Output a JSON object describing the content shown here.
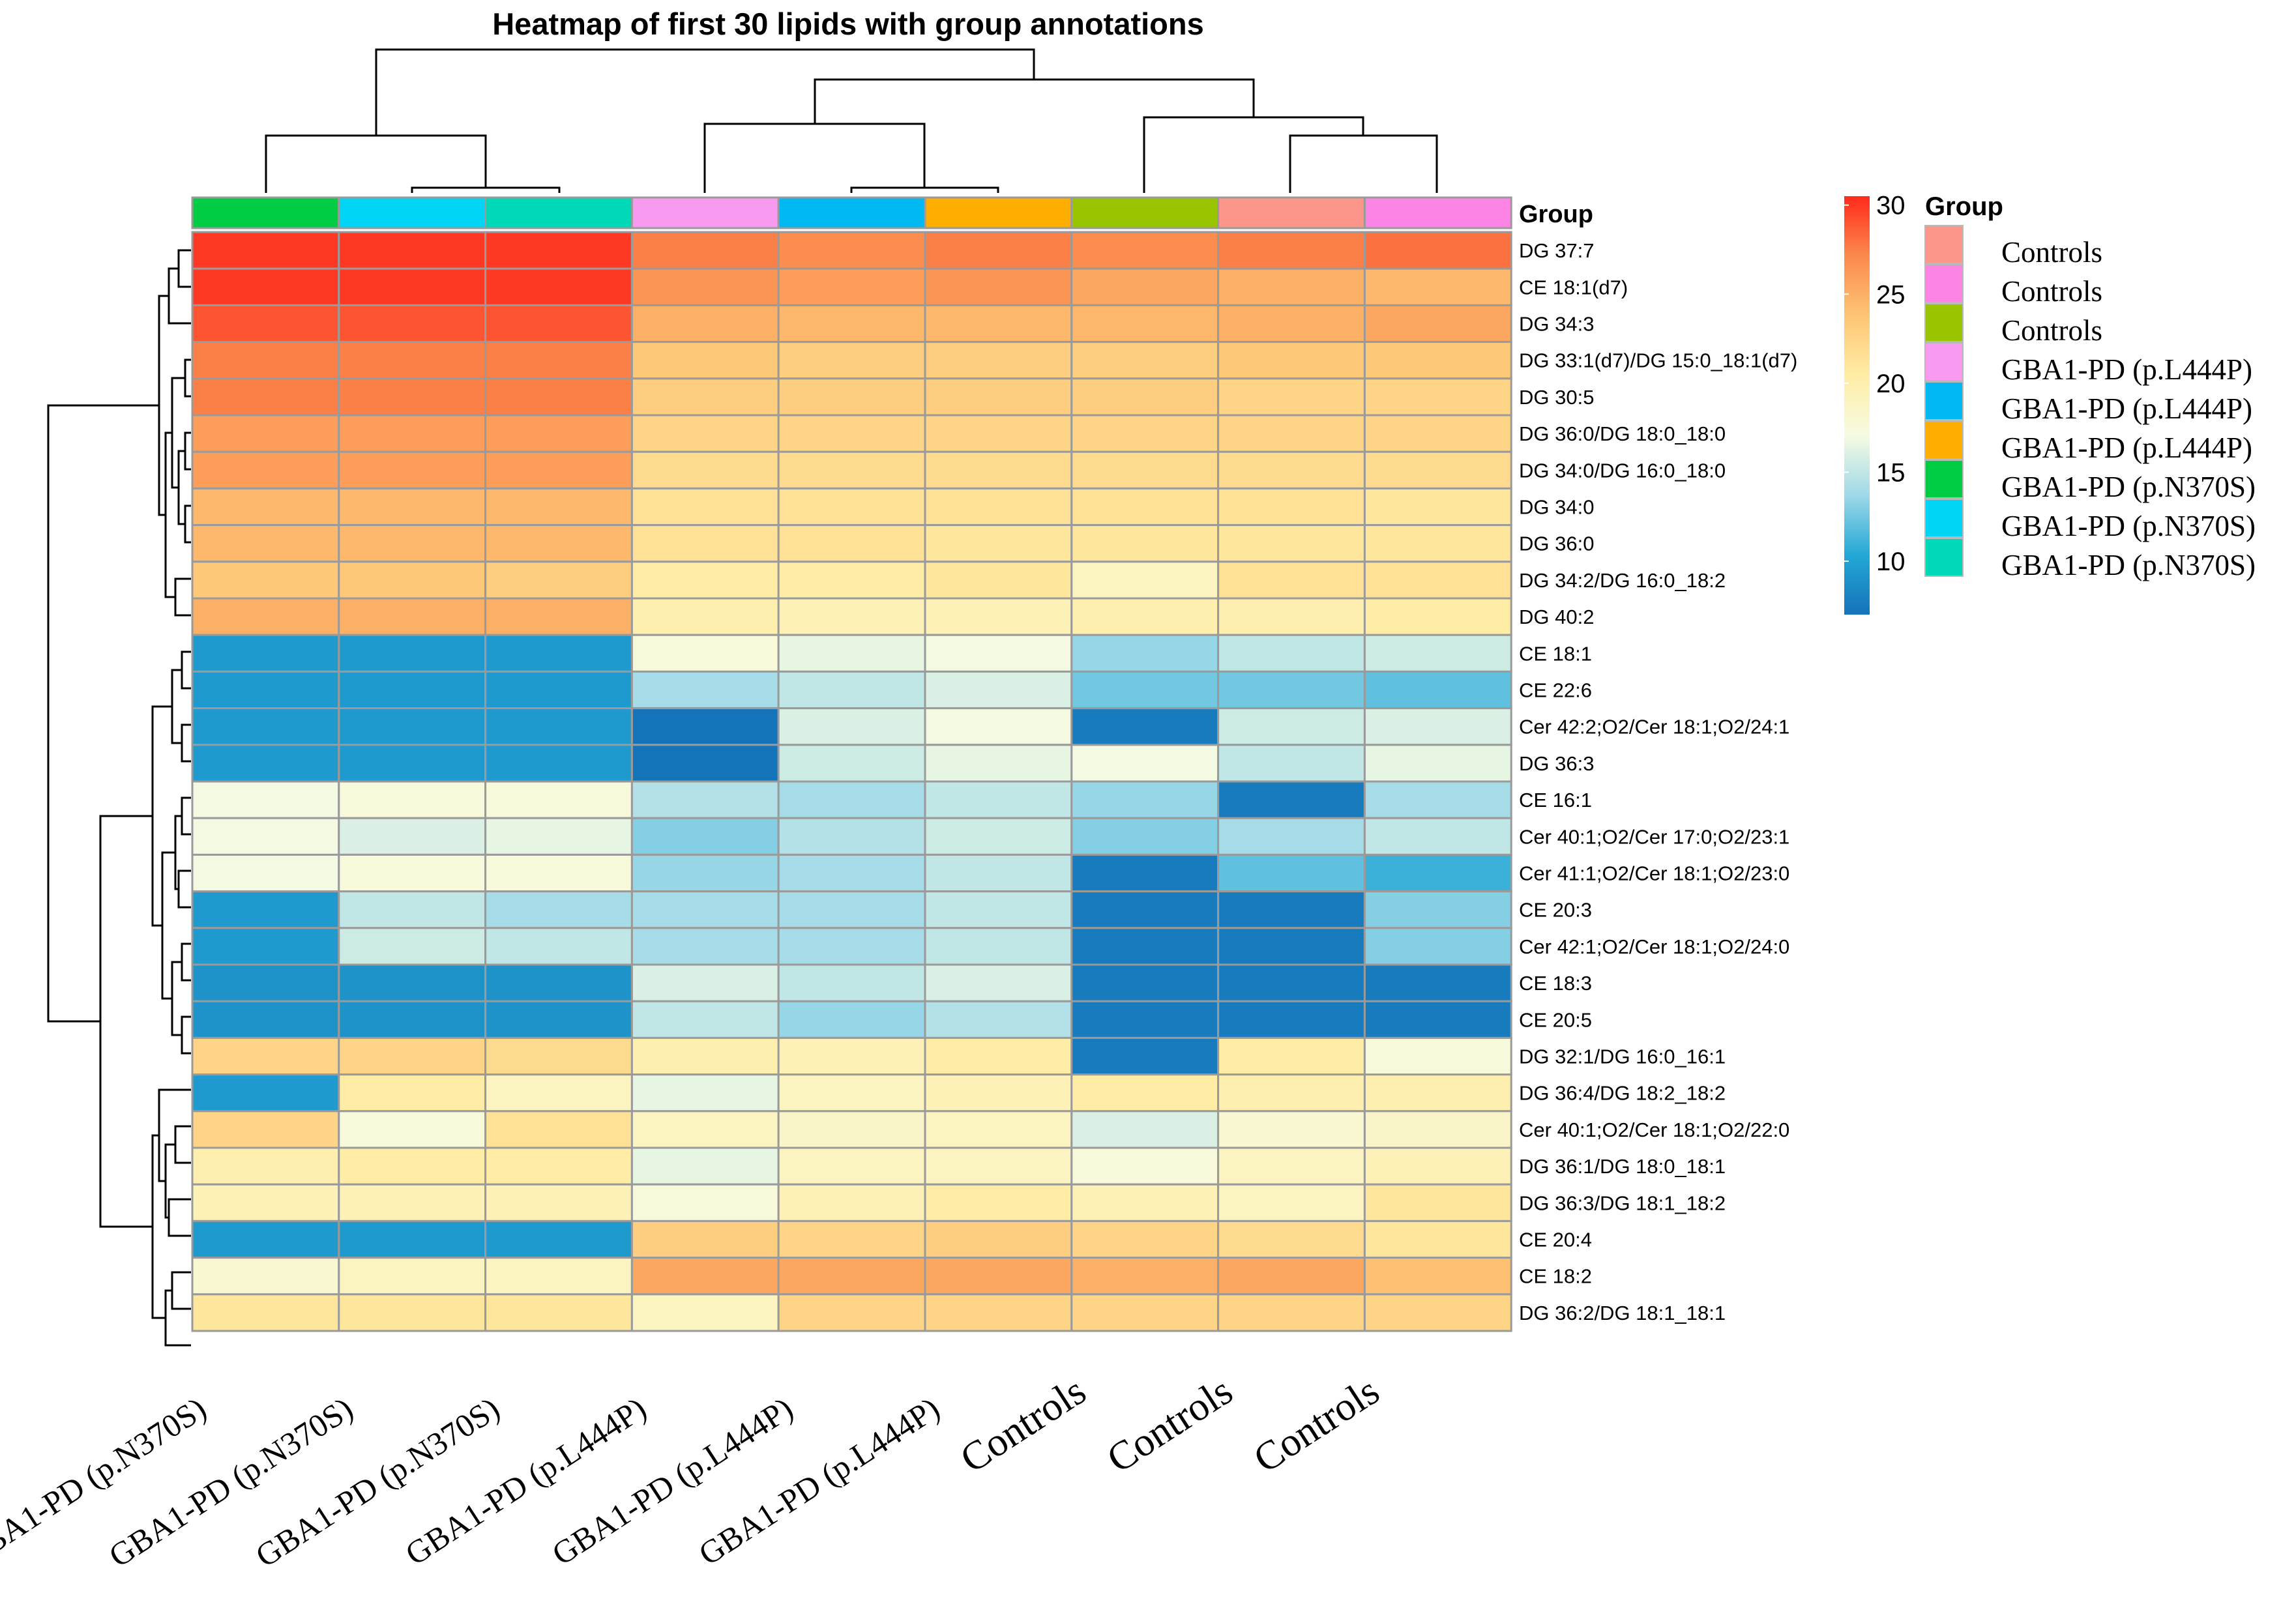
{
  "chart_data": {
    "type": "heatmap",
    "title": "Heatmap of first 30 lipids with group annotations",
    "group_header": "Group",
    "columns": [
      "GBA1-PD (p.N370S)",
      "GBA1-PD (p.N370S)",
      "GBA1-PD (p.N370S)",
      "GBA1-PD (p.L444P)",
      "GBA1-PD (p.L444P)",
      "GBA1-PD (p.L444P)",
      "Controls",
      "Controls",
      "Controls"
    ],
    "column_colors": [
      "#00CC44",
      "#00D5F5",
      "#00D9B8",
      "#F79AF0",
      "#00B8F2",
      "#FFAE00",
      "#99C400",
      "#FC958A",
      "#FB84E5"
    ],
    "rows": [
      "DG 37:7",
      "CE 18:1(d7)",
      "DG 34:3",
      "DG 33:1(d7)/DG 15:0_18:1(d7)",
      "DG 30:5",
      "DG 36:0/DG 18:0_18:0",
      "DG 34:0/DG 16:0_18:0",
      "DG 34:0",
      "DG 36:0",
      "DG 34:2/DG 16:0_18:2",
      "DG 40:2",
      "CE 18:1",
      "CE 22:6",
      "Cer 42:2;O2/Cer 18:1;O2/24:1",
      "DG 36:3",
      "CE 16:1",
      "Cer 40:1;O2/Cer 17:0;O2/23:1",
      "Cer 41:1;O2/Cer 18:1;O2/23:0",
      "CE 20:3",
      "Cer 42:1;O2/Cer 18:1;O2/24:0",
      "CE 18:3",
      "CE 20:5",
      "DG 32:1/DG 16:0_16:1",
      "DG 36:4/DG 18:2_18:2",
      "Cer 40:1;O2/Cer 18:1;O2/22:0",
      "DG 36:1/DG 18:0_18:1",
      "DG 36:3/DG 18:1_18:2",
      "CE 20:4",
      "CE 18:2",
      "DG 36:2/DG 18:1_18:1"
    ],
    "values": [
      [
        30,
        30,
        30,
        27.5,
        27,
        27.5,
        27,
        27.5,
        28
      ],
      [
        30,
        30,
        30,
        26.5,
        26,
        26.5,
        25.5,
        25,
        24.5
      ],
      [
        29,
        29,
        29,
        25,
        24.5,
        24.5,
        24.5,
        25,
        25.5
      ],
      [
        27.5,
        27.5,
        27.5,
        23.5,
        23,
        23,
        23,
        23.5,
        23.5
      ],
      [
        27.5,
        27.5,
        27.5,
        23,
        23,
        23,
        23,
        22.5,
        22.5
      ],
      [
        26,
        26,
        26,
        22.5,
        22.5,
        22.5,
        22.5,
        22.5,
        22.5
      ],
      [
        26,
        26,
        26,
        22,
        22,
        22,
        22,
        22,
        22
      ],
      [
        24.5,
        24.5,
        24.5,
        21.5,
        21.5,
        21.5,
        21.5,
        21.5,
        21
      ],
      [
        24.5,
        24.5,
        24.5,
        21.5,
        21.5,
        21,
        21,
        21,
        21
      ],
      [
        23.5,
        23.5,
        23,
        20.5,
        20.5,
        21,
        19,
        21.5,
        21.5
      ],
      [
        25,
        25,
        25,
        20,
        19.5,
        19.5,
        20,
        20,
        20.5
      ],
      [
        9.5,
        9.5,
        9.5,
        17.5,
        16.5,
        17,
        13.5,
        15,
        15.5
      ],
      [
        9.5,
        9.5,
        9.5,
        14,
        15,
        16,
        12.5,
        12.5,
        12
      ],
      [
        9.5,
        9.5,
        9.5,
        7,
        16,
        17,
        7.5,
        15.5,
        16
      ],
      [
        9.5,
        9.5,
        9.5,
        7,
        15.5,
        16.5,
        17,
        15,
        16.5
      ],
      [
        17,
        17.5,
        17.5,
        14.5,
        14,
        15,
        13.5,
        7.5,
        14
      ],
      [
        17,
        16,
        16.5,
        13,
        14.5,
        15.5,
        13,
        14,
        15
      ],
      [
        17,
        17.5,
        17.5,
        13.5,
        14,
        15,
        7.5,
        12,
        11
      ],
      [
        9.5,
        15,
        14,
        14,
        14,
        15,
        7.5,
        7.5,
        13
      ],
      [
        9.5,
        15.5,
        15,
        14,
        14,
        15,
        7.5,
        7.5,
        13
      ],
      [
        9,
        9,
        9,
        16,
        15,
        16,
        7.5,
        7.5,
        7.5
      ],
      [
        9,
        9,
        9,
        15,
        13.5,
        14.5,
        7.5,
        7.5,
        7.5
      ],
      [
        22.5,
        22.5,
        22,
        20,
        19.5,
        20.5,
        7.5,
        20.5,
        17.5
      ],
      [
        9.5,
        20.5,
        19,
        16.5,
        19,
        19.5,
        20.5,
        20,
        20
      ],
      [
        22.5,
        17.5,
        21.5,
        19,
        18.5,
        19,
        16,
        18,
        18.5
      ],
      [
        20,
        20.5,
        20.5,
        16.5,
        19,
        19,
        17.5,
        19,
        19.5
      ],
      [
        19.5,
        19.5,
        19.5,
        17.5,
        19.5,
        20.5,
        19.5,
        19,
        21
      ],
      [
        9.5,
        9.5,
        9.5,
        23,
        22.5,
        23,
        22.5,
        22,
        21
      ],
      [
        18,
        19,
        19,
        25.5,
        25.5,
        25.5,
        25,
        25.5,
        24
      ],
      [
        21,
        21,
        21,
        19,
        22.5,
        22.5,
        22.5,
        22.5,
        22.5
      ]
    ],
    "colorbar": {
      "range": [
        7,
        30.5
      ],
      "ticks": [
        10,
        15,
        20,
        25,
        30
      ],
      "stops": [
        "#1573B9",
        "#23A8D6",
        "#9FD9E8",
        "#F6FBE2",
        "#FFEDA6",
        "#FDC574",
        "#FB8A4C",
        "#FF2A1C"
      ]
    },
    "legend": {
      "title": "Group",
      "entries": [
        {
          "label": "Controls",
          "color": "#FC958A"
        },
        {
          "label": "Controls",
          "color": "#FB84E5"
        },
        {
          "label": "Controls",
          "color": "#99C400"
        },
        {
          "label": "GBA1-PD (p.L444P)",
          "color": "#F79AF0"
        },
        {
          "label": "GBA1-PD (p.L444P)",
          "color": "#00B8F2"
        },
        {
          "label": "GBA1-PD (p.L444P)",
          "color": "#FFAE00"
        },
        {
          "label": "GBA1-PD (p.N370S)",
          "color": "#00CC44"
        },
        {
          "label": "GBA1-PD (p.N370S)",
          "color": "#00D5F5"
        },
        {
          "label": "GBA1-PD (p.N370S)",
          "color": "#00D9B8"
        }
      ]
    }
  }
}
